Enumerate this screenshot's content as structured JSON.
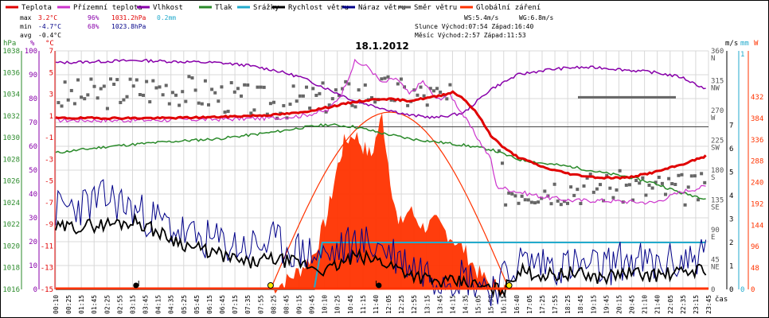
{
  "legend": [
    {
      "label": "Teplota",
      "color": "#e00000"
    },
    {
      "label": "Přízemní teplota",
      "color": "#cc33cc"
    },
    {
      "label": "Vlhkost",
      "color": "#8800aa"
    },
    {
      "label": "Tlak",
      "color": "#2a8a2a"
    },
    {
      "label": "Srážky",
      "color": "#22aacc"
    },
    {
      "label": "Rychlost větru",
      "color": "#000000"
    },
    {
      "label": "Náraz větru",
      "color": "#000088"
    },
    {
      "label": "Směr větru",
      "color": "#666666"
    },
    {
      "label": "Globální záření",
      "color": "#ff3300"
    }
  ],
  "stats": {
    "max_label": "max",
    "max_temp": "3.2°C",
    "max_hum": "96%",
    "max_press": "1031.2hPa",
    "max_rain": "0.2mm",
    "min_label": "min",
    "min_temp": "-4.7°C",
    "min_hum": "68%",
    "min_press": "1023.8hPa",
    "avg_label": "avg",
    "avg_temp": "-0.4°C",
    "ws": "WS:5.4m/s",
    "wg": "WG:6.8m/s",
    "sun": "Slunce Východ:07:54  Západ:16:40",
    "moon": "Měsíc  Východ:2:57   Západ:11:53"
  },
  "title": "18.1.2012",
  "unit_labels": {
    "hpa": "hPa",
    "pct": "%",
    "degc": "°C",
    "ms": "m/s",
    "mm": "mm",
    "w": "W",
    "cas": "čas"
  },
  "axes": {
    "hpa": [
      "1038",
      "1036",
      "1034",
      "1032",
      "1030",
      "1028",
      "1026",
      "1024",
      "1022",
      "1020",
      "1018",
      "1016"
    ],
    "pct": [
      "100",
      "90",
      "80",
      "70",
      "60",
      "50",
      "40",
      "30",
      "20",
      "10",
      "0"
    ],
    "temp": [
      "7",
      "5",
      "3",
      "1",
      "-1",
      "-3",
      "-5",
      "-7",
      "-9",
      "-11",
      "-13",
      "-15"
    ],
    "dir": [
      "360 N",
      "315 NW",
      "270 W",
      "225 SW",
      "180 S",
      "135 SE",
      "90 E",
      "45 NE",
      "0"
    ],
    "ms": [
      "7",
      "6",
      "5",
      "4",
      "3",
      "2",
      "1",
      "0"
    ],
    "mm": [
      "1",
      "0"
    ],
    "w": [
      "432",
      "384",
      "336",
      "288",
      "240",
      "192",
      "144",
      "96",
      "48",
      "0"
    ],
    "time": [
      "00:10",
      "00:25",
      "01:15",
      "01:45",
      "02:25",
      "02:55",
      "03:15",
      "03:45",
      "04:15",
      "04:35",
      "05:25",
      "05:45",
      "06:15",
      "06:45",
      "07:15",
      "07:35",
      "07:55",
      "08:25",
      "08:45",
      "09:15",
      "09:45",
      "10:10",
      "10:25",
      "10:45",
      "11:15",
      "11:40",
      "12:05",
      "12:25",
      "12:55",
      "13:15",
      "13:45",
      "14:15",
      "14:35",
      "15:05",
      "15:50",
      "16:15",
      "16:40",
      "17:05",
      "17:25",
      "17:55",
      "18:25",
      "18:45",
      "19:15",
      "19:45",
      "20:15",
      "20:45",
      "21:10",
      "21:40",
      "22:05",
      "22:35",
      "23:15",
      "23:45"
    ]
  },
  "colors": {
    "grid": "#d8d8d8",
    "temp": "#e00000",
    "ground": "#cc33cc",
    "hum": "#8800aa",
    "press": "#2a8a2a",
    "rain": "#22aacc",
    "wind": "#000000",
    "gust": "#000088",
    "dir": "#666666",
    "solar": "#ff3300",
    "zero": "#444444"
  },
  "chart_data": {
    "type": "line",
    "title": "18.1.2012",
    "x_range": [
      "00:00",
      "24:00"
    ],
    "series": [
      {
        "name": "Teplota",
        "unit": "°C",
        "points": [
          [
            0,
            0.8
          ],
          [
            2,
            0.8
          ],
          [
            4,
            0.8
          ],
          [
            6,
            0.9
          ],
          [
            7,
            1.0
          ],
          [
            8,
            1.1
          ],
          [
            9,
            1.3
          ],
          [
            10,
            1.8
          ],
          [
            11,
            2.3
          ],
          [
            12,
            2.6
          ],
          [
            13,
            2.4
          ],
          [
            14,
            2.8
          ],
          [
            14.6,
            3.2
          ],
          [
            15,
            2.6
          ],
          [
            15.5,
            1.2
          ],
          [
            16,
            -0.8
          ],
          [
            16.5,
            -2.0
          ],
          [
            17,
            -2.8
          ],
          [
            18,
            -3.8
          ],
          [
            19,
            -4.4
          ],
          [
            20,
            -4.7
          ],
          [
            21,
            -4.7
          ],
          [
            22,
            -4.2
          ],
          [
            23,
            -3.5
          ],
          [
            23.9,
            -2.7
          ]
        ]
      },
      {
        "name": "Přízemní teplota",
        "unit": "°C",
        "points": [
          [
            0,
            0.6
          ],
          [
            3,
            0.6
          ],
          [
            6,
            0.7
          ],
          [
            8,
            0.8
          ],
          [
            9,
            1.0
          ],
          [
            10,
            1.5
          ],
          [
            10.5,
            3.0
          ],
          [
            11,
            6.0
          ],
          [
            11.5,
            5.5
          ],
          [
            12,
            4.0
          ],
          [
            12.5,
            4.5
          ],
          [
            13,
            3.0
          ],
          [
            13.5,
            4.2
          ],
          [
            14,
            2.5
          ],
          [
            14.5,
            3.0
          ],
          [
            15,
            1.0
          ],
          [
            15.5,
            -1.0
          ],
          [
            16,
            -3.0
          ],
          [
            16.2,
            -5.5
          ],
          [
            17,
            -6.0
          ],
          [
            18,
            -6.5
          ],
          [
            19,
            -6.8
          ],
          [
            20,
            -6.8
          ],
          [
            21,
            -6.9
          ],
          [
            22,
            -7.0
          ],
          [
            23,
            -6.0
          ],
          [
            23.9,
            -5.5
          ]
        ]
      },
      {
        "name": "Vlhkost",
        "unit": "%",
        "points": [
          [
            0,
            95
          ],
          [
            3,
            96
          ],
          [
            6,
            95
          ],
          [
            7,
            94
          ],
          [
            8,
            92
          ],
          [
            9,
            89
          ],
          [
            10,
            84
          ],
          [
            11,
            79
          ],
          [
            12,
            76
          ],
          [
            13,
            73
          ],
          [
            14,
            72
          ],
          [
            15,
            74
          ],
          [
            15.5,
            79
          ],
          [
            16,
            84
          ],
          [
            16.5,
            87
          ],
          [
            17,
            90
          ],
          [
            18,
            92
          ],
          [
            19,
            93
          ],
          [
            20,
            93
          ],
          [
            21,
            92
          ],
          [
            22,
            91
          ],
          [
            23,
            89
          ],
          [
            23.9,
            84
          ]
        ]
      },
      {
        "name": "Tlak",
        "unit": "hPa",
        "points": [
          [
            0,
            1028.6
          ],
          [
            2,
            1029.2
          ],
          [
            4,
            1029.6
          ],
          [
            6,
            1029.9
          ],
          [
            8,
            1030.5
          ],
          [
            9,
            1030.9
          ],
          [
            10,
            1031.2
          ],
          [
            11,
            1031.0
          ],
          [
            12,
            1030.4
          ],
          [
            13,
            1029.9
          ],
          [
            14,
            1029.6
          ],
          [
            15,
            1029.3
          ],
          [
            16,
            1028.9
          ],
          [
            17,
            1028.0
          ],
          [
            18,
            1027.6
          ],
          [
            19,
            1027.3
          ],
          [
            20,
            1026.8
          ],
          [
            21,
            1026.4
          ],
          [
            22,
            1025.8
          ],
          [
            23,
            1024.9
          ],
          [
            23.9,
            1024.4
          ]
        ]
      },
      {
        "name": "Srážky",
        "unit": "mm",
        "points": [
          [
            0,
            0
          ],
          [
            9.5,
            0
          ],
          [
            9.8,
            0.2
          ],
          [
            23.9,
            0.2
          ]
        ]
      },
      {
        "name": "Rychlost větru",
        "unit": "m/s",
        "points": [
          [
            0,
            2.6
          ],
          [
            1,
            2.7
          ],
          [
            2,
            2.8
          ],
          [
            3,
            2.9
          ],
          [
            4,
            2.3
          ],
          [
            5,
            1.8
          ],
          [
            6,
            1.5
          ],
          [
            7,
            1.1
          ],
          [
            8,
            1.3
          ],
          [
            9,
            1.1
          ],
          [
            10,
            0.8
          ],
          [
            11,
            1.4
          ],
          [
            12,
            1.2
          ],
          [
            13,
            0.7
          ],
          [
            14,
            0.3
          ],
          [
            15,
            0.3
          ],
          [
            16,
            0
          ],
          [
            16.5,
            0
          ],
          [
            17,
            0.8
          ],
          [
            18,
            0.6
          ],
          [
            19,
            0.7
          ],
          [
            20,
            0.5
          ],
          [
            21,
            0.7
          ],
          [
            22,
            0.6
          ],
          [
            23,
            0.7
          ],
          [
            23.9,
            0.9
          ]
        ]
      },
      {
        "name": "Náraz větru",
        "unit": "m/s",
        "points": [
          [
            0,
            3.4
          ],
          [
            1,
            3.6
          ],
          [
            2,
            3.9
          ],
          [
            3,
            3.3
          ],
          [
            4,
            2.8
          ],
          [
            5,
            2.2
          ],
          [
            6,
            2.0
          ],
          [
            7,
            1.8
          ],
          [
            8,
            2.0
          ],
          [
            9,
            1.6
          ],
          [
            10,
            1.4
          ],
          [
            11,
            2.0
          ],
          [
            12,
            1.8
          ],
          [
            13,
            1.1
          ],
          [
            14,
            0.6
          ],
          [
            15,
            0.6
          ],
          [
            16,
            0.1
          ],
          [
            16.5,
            0.4
          ],
          [
            17,
            1.2
          ],
          [
            18,
            1.1
          ],
          [
            19,
            1.0
          ],
          [
            20,
            0.9
          ],
          [
            21,
            1.3
          ],
          [
            22,
            1.0
          ],
          [
            23,
            1.2
          ],
          [
            23.9,
            1.6
          ]
        ]
      },
      {
        "name": "Směr větru",
        "unit": "°",
        "points": [
          [
            0,
            290
          ],
          [
            4,
            305
          ],
          [
            8,
            280
          ],
          [
            10,
            290
          ],
          [
            12,
            300
          ],
          [
            14,
            290
          ],
          [
            16,
            270
          ],
          [
            16.5,
            150
          ],
          [
            20,
            155
          ],
          [
            23.9,
            150
          ]
        ]
      },
      {
        "name": "Globální záření",
        "unit": "W",
        "points": [
          [
            7.9,
            0
          ],
          [
            8.5,
            20
          ],
          [
            9,
            45
          ],
          [
            9.5,
            80
          ],
          [
            10,
            170
          ],
          [
            10.3,
            260
          ],
          [
            10.6,
            330
          ],
          [
            11,
            350
          ],
          [
            11.3,
            320
          ],
          [
            11.6,
            300
          ],
          [
            12,
            390
          ],
          [
            12.3,
            250
          ],
          [
            12.6,
            140
          ],
          [
            13,
            180
          ],
          [
            13.5,
            140
          ],
          [
            14,
            150
          ],
          [
            14.5,
            120
          ],
          [
            15,
            90
          ],
          [
            15.5,
            40
          ],
          [
            16,
            10
          ],
          [
            16.67,
            0
          ]
        ]
      }
    ]
  }
}
